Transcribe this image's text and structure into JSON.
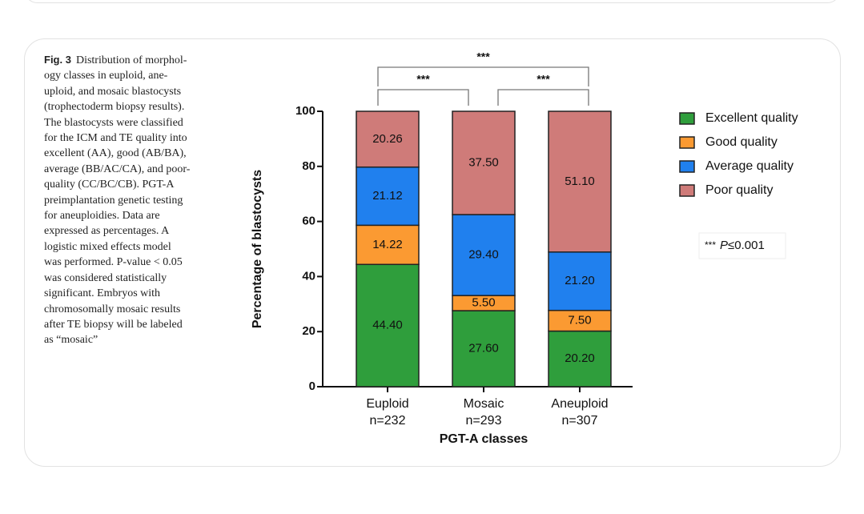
{
  "caption": {
    "label": "Fig. 3",
    "lines": [
      "Distribution of morphol-",
      "ogy classes in euploid, ane-",
      "uploid, and mosaic blastocysts",
      "(trophectoderm biopsy results).",
      "The blastocysts were classified",
      "for the ICM and TE quality into",
      "excellent (AA), good (AB/BA),",
      "average (BB/AC/CA), and poor-",
      "quality (CC/BC/CB). PGT-A",
      "preimplantation genetic testing",
      "for aneuploidies. Data are",
      "expressed as percentages. A",
      "logistic mixed effects model",
      "was performed. P-value < 0.05",
      "was considered statistically",
      "significant. Embryos with",
      "chromosomally mosaic results",
      "after TE biopsy will be labeled",
      "as “mosaic”"
    ]
  },
  "chart_data": {
    "type": "stacked_bar",
    "y_label": "Percentage of blastocysts",
    "x_label": "PGT-A classes",
    "categories": [
      "Euploid",
      "Mosaic",
      "Aneuploid"
    ],
    "n_labels": [
      "n=232",
      "n=293",
      "n=307"
    ],
    "series": [
      {
        "name": "Excellent quality",
        "color": "#2f9e3c",
        "values": [
          44.4,
          27.6,
          20.2
        ],
        "value_labels": [
          "44.40",
          "27.60",
          "20.20"
        ]
      },
      {
        "name": "Good quality",
        "color": "#fb9a32",
        "values": [
          14.22,
          5.5,
          7.5
        ],
        "value_labels": [
          "14.22",
          "5.50",
          "7.50"
        ]
      },
      {
        "name": "Average quality",
        "color": "#2080ee",
        "values": [
          21.12,
          29.4,
          21.2
        ],
        "value_labels": [
          "21.12",
          "29.40",
          "21.20"
        ]
      },
      {
        "name": "Poor quality",
        "color": "#cf7b79",
        "values": [
          20.26,
          37.5,
          51.1
        ],
        "value_labels": [
          "20.26",
          "37.50",
          "51.10"
        ]
      }
    ],
    "ylim": [
      0,
      100
    ],
    "yticks": [
      0,
      20,
      40,
      60,
      80,
      100
    ],
    "brackets": [
      {
        "label": "***",
        "between": [
          0,
          2
        ]
      },
      {
        "label": "***",
        "between": [
          0,
          1
        ]
      },
      {
        "label": "***",
        "between": [
          1,
          2
        ]
      }
    ],
    "note": [
      "***",
      "P",
      "≤0.001"
    ]
  }
}
